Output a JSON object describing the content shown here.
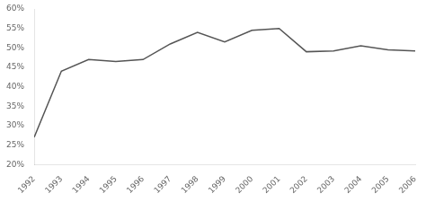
{
  "chart_data": {
    "type": "line",
    "x": [
      1992,
      1993,
      1994,
      1995,
      1996,
      1997,
      1998,
      1999,
      2000,
      2001,
      2002,
      2003,
      2004,
      2005,
      2006
    ],
    "values": [
      0.27,
      0.44,
      0.47,
      0.465,
      0.47,
      0.51,
      0.54,
      0.515,
      0.545,
      0.55,
      0.49,
      0.492,
      0.505,
      0.495,
      0.492
    ],
    "color": "#555555",
    "xlim": [
      1992,
      2006
    ],
    "xticks": [
      1992,
      1993,
      1994,
      1995,
      1996,
      1997,
      1998,
      1999,
      2000,
      2001,
      2002,
      2003,
      2004,
      2005,
      2006
    ],
    "ylim": [
      0.2,
      0.6
    ],
    "yticks": [
      {
        "value": 0.2,
        "label": "20%"
      },
      {
        "value": 0.25,
        "label": "25%"
      },
      {
        "value": 0.3,
        "label": "30%"
      },
      {
        "value": 0.35,
        "label": "35%"
      },
      {
        "value": 0.4,
        "label": "40%"
      },
      {
        "value": 0.45,
        "label": "45%"
      },
      {
        "value": 0.5,
        "label": "50%"
      },
      {
        "value": 0.55,
        "label": "55%"
      },
      {
        "value": 0.6,
        "label": "60%"
      }
    ],
    "grid": false
  }
}
